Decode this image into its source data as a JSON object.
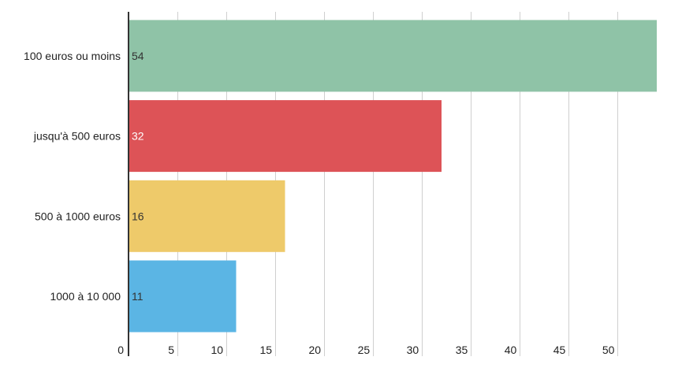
{
  "chart_data": {
    "type": "bar",
    "orientation": "horizontal",
    "categories": [
      "100 euros ou moins",
      "jusqu'à 500 euros",
      "500 à 1000 euros",
      "1000 à 10 000"
    ],
    "values": [
      54,
      32,
      16,
      11
    ],
    "data_labels": [
      "54",
      "32",
      "16",
      "11"
    ],
    "colors": [
      "#8fc3a7",
      "#dd5357",
      "#eeca6a",
      "#5bb5e4"
    ],
    "label_colors": [
      "#333333",
      "#ffffff",
      "#333333",
      "#333333"
    ],
    "xlim": [
      0,
      54
    ],
    "xticks": [
      0,
      5,
      10,
      15,
      20,
      25,
      30,
      35,
      40,
      45,
      50
    ],
    "tick_labels": [
      "0",
      "5",
      "10",
      "15",
      "20",
      "25",
      "30",
      "35",
      "40",
      "45",
      "50"
    ],
    "grid": true,
    "title": "",
    "xlabel": "",
    "ylabel": ""
  }
}
